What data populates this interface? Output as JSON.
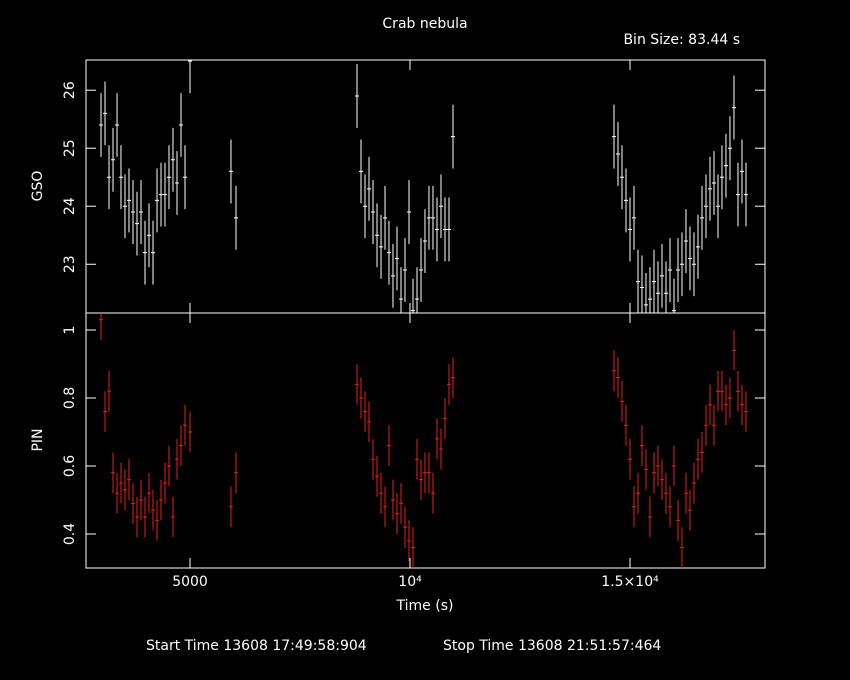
{
  "chart_data": [
    {
      "type": "scatter",
      "title": "Crab nebula",
      "annotation": "Bin Size: 83.44 s",
      "ylabel": "GSO",
      "color": "#ffffff",
      "x": [
        2977,
        3068,
        3159,
        3250,
        3341,
        3431,
        3522,
        3613,
        3704,
        3795,
        3886,
        3977,
        4068,
        4159,
        4250,
        4341,
        4431,
        4522,
        4613,
        4704,
        4795,
        4886,
        5000,
        5931,
        6045,
        8795,
        8886,
        8977,
        9068,
        9159,
        9250,
        9341,
        9432,
        9522,
        9613,
        9704,
        9795,
        9886,
        9977,
        10068,
        10159,
        10250,
        10340,
        10431,
        10522,
        10613,
        10704,
        10795,
        10886,
        10977,
        14636,
        14727,
        14818,
        14909,
        15000,
        15091,
        15182,
        15272,
        15363,
        15454,
        15545,
        15636,
        15727,
        15818,
        15909,
        16000,
        16091,
        16181,
        16272,
        16363,
        16454,
        16545,
        16636,
        16727,
        16818,
        16909,
        17000,
        17090,
        17181,
        17272,
        17363,
        17454,
        17545,
        17636
      ],
      "values": [
        25.4,
        25.6,
        24.5,
        24.8,
        25.4,
        24.5,
        24.0,
        24.1,
        23.9,
        23.7,
        23.9,
        23.2,
        23.5,
        23.2,
        24.1,
        24.2,
        24.2,
        24.5,
        24.8,
        24.4,
        25.4,
        24.5,
        26.5,
        24.6,
        23.8,
        25.9,
        24.6,
        24.0,
        24.3,
        23.9,
        23.5,
        23.3,
        23.8,
        23.2,
        22.8,
        23.1,
        22.4,
        22.9,
        23.9,
        22.2,
        22.4,
        22.9,
        23.4,
        23.8,
        23.8,
        23.6,
        24.0,
        23.6,
        23.6,
        25.2,
        25.2,
        24.9,
        24.5,
        24.1,
        23.6,
        23.8,
        22.7,
        22.6,
        22.3,
        22.4,
        22.7,
        22.5,
        22.8,
        22.5,
        22.9,
        22.2,
        22.9,
        23.0,
        23.4,
        23.1,
        23.0,
        23.3,
        23.8,
        24.0,
        24.3,
        24.4,
        24.0,
        24.5,
        24.7,
        25.0,
        25.7,
        24.2,
        24.6,
        24.2
      ],
      "errors": [
        0.55,
        0.55,
        0.55,
        0.55,
        0.55,
        0.55,
        0.55,
        0.55,
        0.55,
        0.55,
        0.55,
        0.55,
        0.55,
        0.55,
        0.55,
        0.55,
        0.55,
        0.55,
        0.55,
        0.55,
        0.55,
        0.55,
        0.55,
        0.55,
        0.55,
        0.55,
        0.55,
        0.55,
        0.55,
        0.55,
        0.55,
        0.55,
        0.55,
        0.55,
        0.55,
        0.55,
        0.55,
        0.55,
        0.55,
        0.55,
        0.55,
        0.55,
        0.55,
        0.55,
        0.55,
        0.55,
        0.55,
        0.55,
        0.55,
        0.55,
        0.55,
        0.55,
        0.55,
        0.55,
        0.55,
        0.55,
        0.55,
        0.55,
        0.55,
        0.55,
        0.55,
        0.55,
        0.55,
        0.55,
        0.55,
        0.55,
        0.55,
        0.55,
        0.55,
        0.55,
        0.55,
        0.55,
        0.55,
        0.55,
        0.55,
        0.55,
        0.55,
        0.55,
        0.55,
        0.55,
        0.55,
        0.55,
        0.55,
        0.55
      ],
      "xlim": [
        2636,
        18068
      ],
      "ylim": [
        22.16,
        26.52
      ],
      "yticks": [
        23,
        24,
        25,
        26
      ]
    },
    {
      "type": "scatter",
      "ylabel": "PIN",
      "xlabel": "Time (s)",
      "color": "#e02020",
      "start_time": "Start Time 13608 17:49:58:904",
      "stop_time": "Stop Time 13608 21:51:57:464",
      "x": [
        2977,
        3068,
        3159,
        3250,
        3341,
        3431,
        3522,
        3613,
        3704,
        3795,
        3886,
        3977,
        4068,
        4159,
        4250,
        4341,
        4431,
        4522,
        4613,
        4704,
        4795,
        4886,
        5000,
        5931,
        6045,
        8795,
        8886,
        8977,
        9068,
        9159,
        9250,
        9341,
        9432,
        9522,
        9613,
        9704,
        9795,
        9886,
        9977,
        10068,
        10159,
        10250,
        10340,
        10431,
        10522,
        10613,
        10704,
        10795,
        10886,
        10977,
        14636,
        14727,
        14818,
        14909,
        15000,
        15091,
        15182,
        15272,
        15363,
        15454,
        15545,
        15636,
        15727,
        15818,
        15909,
        16000,
        16091,
        16181,
        16272,
        16363,
        16454,
        16545,
        16636,
        16727,
        16818,
        16909,
        17000,
        17090,
        17181,
        17272,
        17363,
        17454,
        17545,
        17636
      ],
      "values": [
        1.03,
        0.76,
        0.82,
        0.58,
        0.52,
        0.55,
        0.53,
        0.56,
        0.49,
        0.45,
        0.5,
        0.45,
        0.52,
        0.47,
        0.44,
        0.5,
        0.55,
        0.6,
        0.45,
        0.62,
        0.66,
        0.72,
        0.7,
        0.48,
        0.58,
        0.84,
        0.8,
        0.76,
        0.73,
        0.62,
        0.57,
        0.52,
        0.48,
        0.66,
        0.5,
        0.46,
        0.49,
        0.42,
        0.38,
        0.36,
        0.62,
        0.56,
        0.58,
        0.58,
        0.52,
        0.68,
        0.65,
        0.74,
        0.84,
        0.86,
        0.88,
        0.86,
        0.79,
        0.72,
        0.62,
        0.48,
        0.52,
        0.66,
        0.59,
        0.45,
        0.58,
        0.6,
        0.56,
        0.52,
        0.48,
        0.6,
        0.44,
        0.36,
        0.52,
        0.47,
        0.55,
        0.62,
        0.64,
        0.72,
        0.78,
        0.72,
        0.82,
        0.82,
        0.78,
        0.8,
        0.94,
        0.82,
        0.78,
        0.76
      ],
      "errors": [
        0.06,
        0.06,
        0.06,
        0.06,
        0.06,
        0.06,
        0.06,
        0.06,
        0.06,
        0.06,
        0.06,
        0.06,
        0.06,
        0.06,
        0.06,
        0.06,
        0.06,
        0.06,
        0.06,
        0.06,
        0.06,
        0.06,
        0.06,
        0.06,
        0.06,
        0.06,
        0.06,
        0.06,
        0.06,
        0.06,
        0.06,
        0.06,
        0.06,
        0.06,
        0.06,
        0.06,
        0.06,
        0.06,
        0.06,
        0.06,
        0.06,
        0.06,
        0.06,
        0.06,
        0.06,
        0.06,
        0.06,
        0.06,
        0.06,
        0.06,
        0.06,
        0.06,
        0.06,
        0.06,
        0.06,
        0.06,
        0.06,
        0.06,
        0.06,
        0.06,
        0.06,
        0.06,
        0.06,
        0.06,
        0.06,
        0.06,
        0.06,
        0.06,
        0.06,
        0.06,
        0.06,
        0.06,
        0.06,
        0.06,
        0.06,
        0.06,
        0.06,
        0.06,
        0.06,
        0.06,
        0.06,
        0.06,
        0.06,
        0.06
      ],
      "xlim": [
        2636,
        18068
      ],
      "ylim": [
        0.3,
        1.05
      ],
      "yticks": [
        0.4,
        0.6,
        0.8,
        1
      ],
      "xticks": [
        5000,
        {
          "value": 10000,
          "label": "10⁴"
        },
        {
          "value": 15000,
          "label": "1.5×10⁴"
        }
      ]
    }
  ]
}
